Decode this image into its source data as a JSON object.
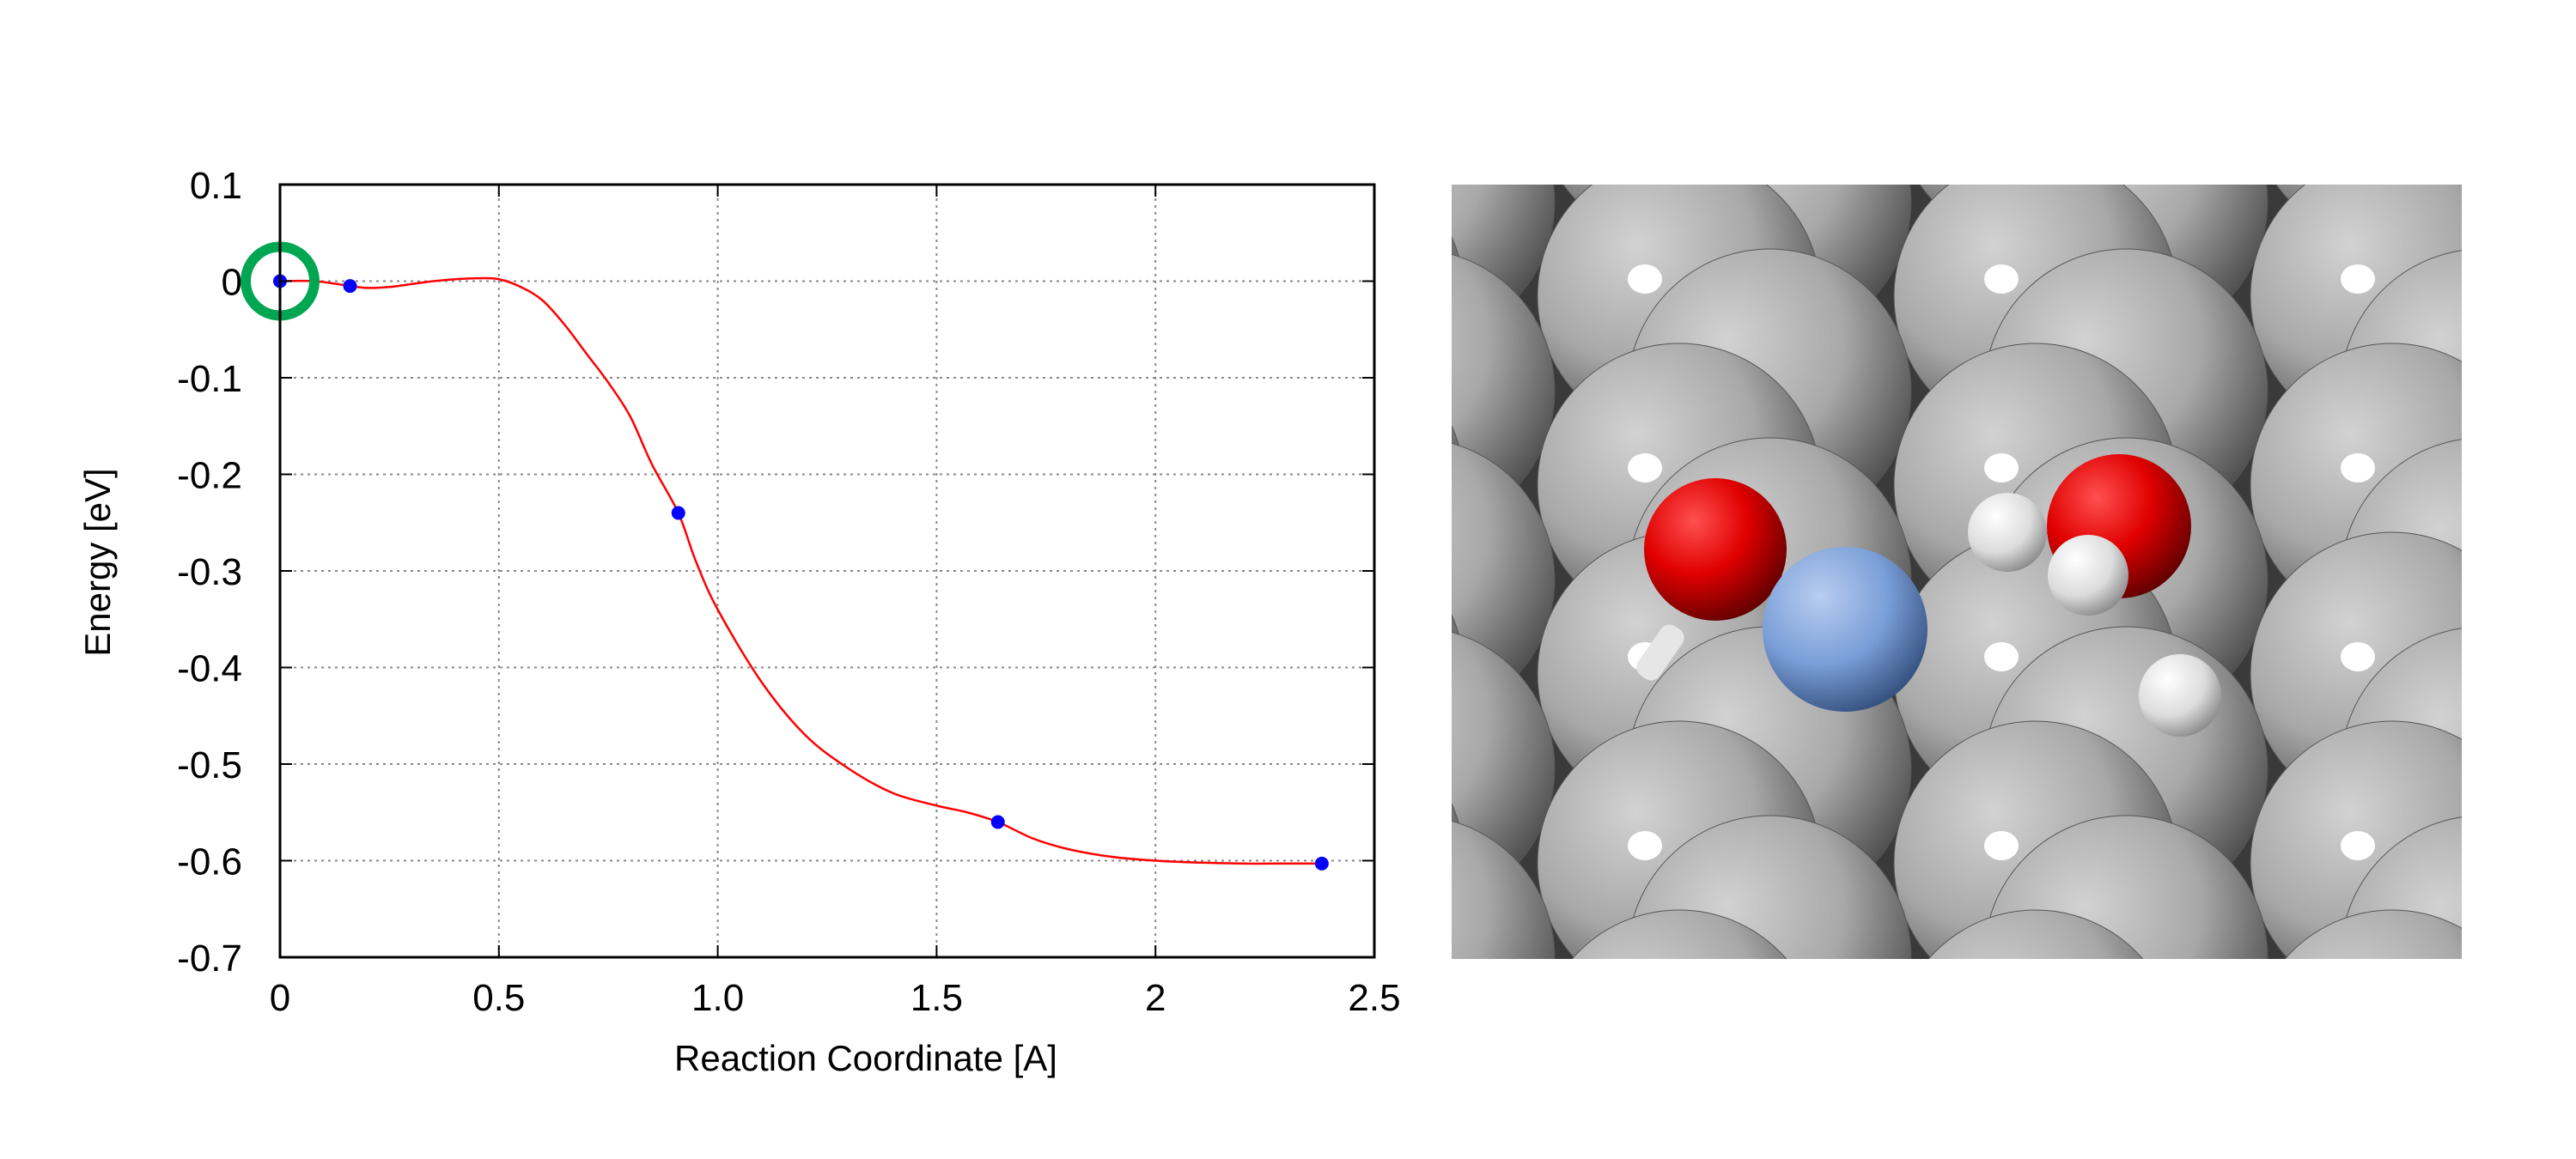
{
  "chart_data": {
    "type": "line",
    "xlabel": "Reaction Coordinate [A]",
    "ylabel": "Energy [eV]",
    "xlim": [
      0,
      2.5
    ],
    "ylim": [
      -0.7,
      0.1
    ],
    "x_ticks": [
      0,
      0.5,
      1.0,
      1.5,
      2,
      2.5
    ],
    "x_tick_labels": [
      "0",
      "0.5",
      "1.0",
      "1.5",
      "2",
      "2.5"
    ],
    "y_ticks": [
      0.1,
      0,
      -0.1,
      -0.2,
      -0.3,
      -0.4,
      -0.5,
      -0.6,
      -0.7
    ],
    "y_tick_labels": [
      "0.1",
      "0",
      "-0.1",
      "-0.2",
      "-0.3",
      "-0.4",
      "-0.5",
      "-0.6",
      "-0.7"
    ],
    "grid": true,
    "series": [
      {
        "role": "interpolated-curve",
        "color": "#ff0000",
        "x": [
          0,
          0.08,
          0.16,
          0.2,
          0.25,
          0.3,
          0.35,
          0.4,
          0.45,
          0.5,
          0.55,
          0.6,
          0.65,
          0.7,
          0.75,
          0.8,
          0.85,
          0.91,
          0.95,
          1.0,
          1.1,
          1.2,
          1.3,
          1.4,
          1.5,
          1.57,
          1.64,
          1.72,
          1.8,
          1.9,
          2.0,
          2.1,
          2.2,
          2.3,
          2.38
        ],
        "y": [
          0.0,
          0.0,
          -0.005,
          -0.007,
          -0.006,
          -0.003,
          0.0,
          0.002,
          0.003,
          0.002,
          -0.006,
          -0.02,
          -0.045,
          -0.075,
          -0.105,
          -0.14,
          -0.19,
          -0.24,
          -0.29,
          -0.34,
          -0.415,
          -0.47,
          -0.505,
          -0.53,
          -0.543,
          -0.55,
          -0.56,
          -0.577,
          -0.588,
          -0.596,
          -0.6,
          -0.602,
          -0.603,
          -0.603,
          -0.603
        ]
      },
      {
        "role": "images",
        "color": "#0000ff",
        "x": [
          0,
          0.16,
          0.91,
          1.64,
          2.38
        ],
        "y": [
          0.0,
          -0.005,
          -0.24,
          -0.56,
          -0.603
        ]
      }
    ],
    "highlight": {
      "x": 0,
      "y": 0.0,
      "color": "#00a651"
    }
  },
  "image_panel": {
    "description_icon": "molecular-model-image",
    "colors": {
      "surface": "#b4b4b4",
      "oxygen": "#e00000",
      "hydrogen": "#eeeeee",
      "metal": "#7a9ed8"
    }
  }
}
